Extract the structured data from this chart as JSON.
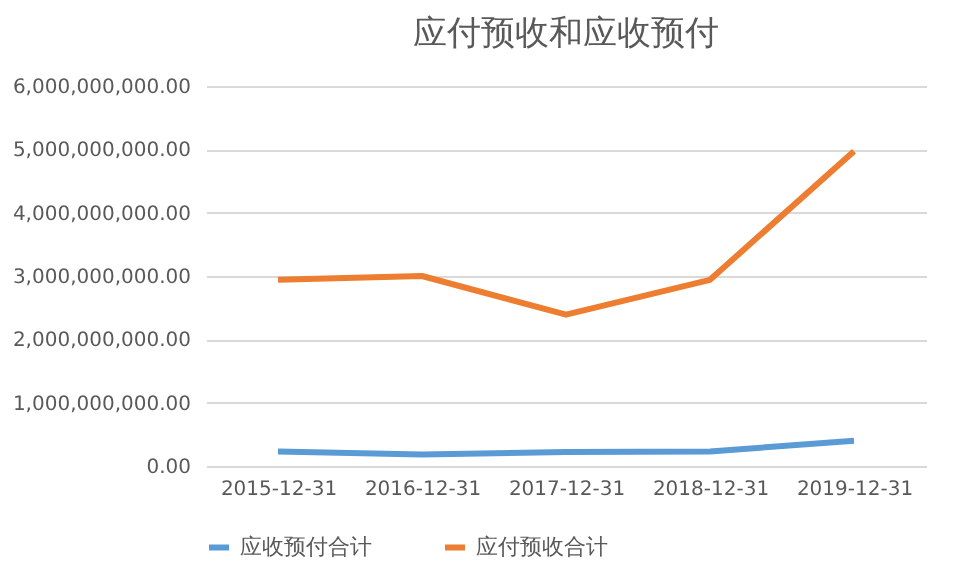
{
  "chart_data": {
    "type": "line",
    "title": "应付预收和应收预付",
    "categories": [
      "2015-12-31",
      "2016-12-31",
      "2017-12-31",
      "2018-12-31",
      "2019-12-31"
    ],
    "series": [
      {
        "name": "应收预付合计",
        "color": "#5b9bd5",
        "values": [
          230000000,
          180000000,
          220000000,
          230000000,
          400000000
        ]
      },
      {
        "name": "应付预收合计",
        "color": "#ed7d31",
        "values": [
          2940000000,
          3000000000,
          2390000000,
          2940000000,
          4970000000
        ]
      }
    ],
    "ylim": [
      0,
      6000000000
    ],
    "yticks": [
      {
        "value": 0,
        "label": "0.00"
      },
      {
        "value": 1000000000,
        "label": "1,000,000,000.00"
      },
      {
        "value": 2000000000,
        "label": "2,000,000,000.00"
      },
      {
        "value": 3000000000,
        "label": "3,000,000,000.00"
      },
      {
        "value": 4000000000,
        "label": "4,000,000,000.00"
      },
      {
        "value": 5000000000,
        "label": "5,000,000,000.00"
      },
      {
        "value": 6000000000,
        "label": "6,000,000,000.00"
      }
    ],
    "grid": "y",
    "legend": "bottom",
    "marker": "none",
    "line_style": "solid"
  }
}
